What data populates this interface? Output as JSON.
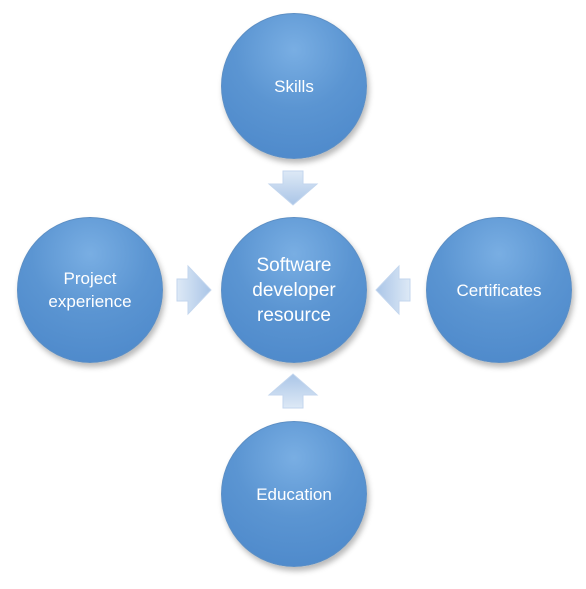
{
  "diagram": {
    "center": {
      "label": "Software\ndeveloper\nresource"
    },
    "nodes": {
      "top": {
        "label": "Skills"
      },
      "left": {
        "label": "Project\nexperience"
      },
      "right": {
        "label": "Certificates"
      },
      "bottom": {
        "label": "Education"
      }
    },
    "colors": {
      "circle": "#5b95d2",
      "arrow_light": "#dce8f6",
      "arrow_dark": "#a9c4e6",
      "text": "#ffffff"
    }
  }
}
